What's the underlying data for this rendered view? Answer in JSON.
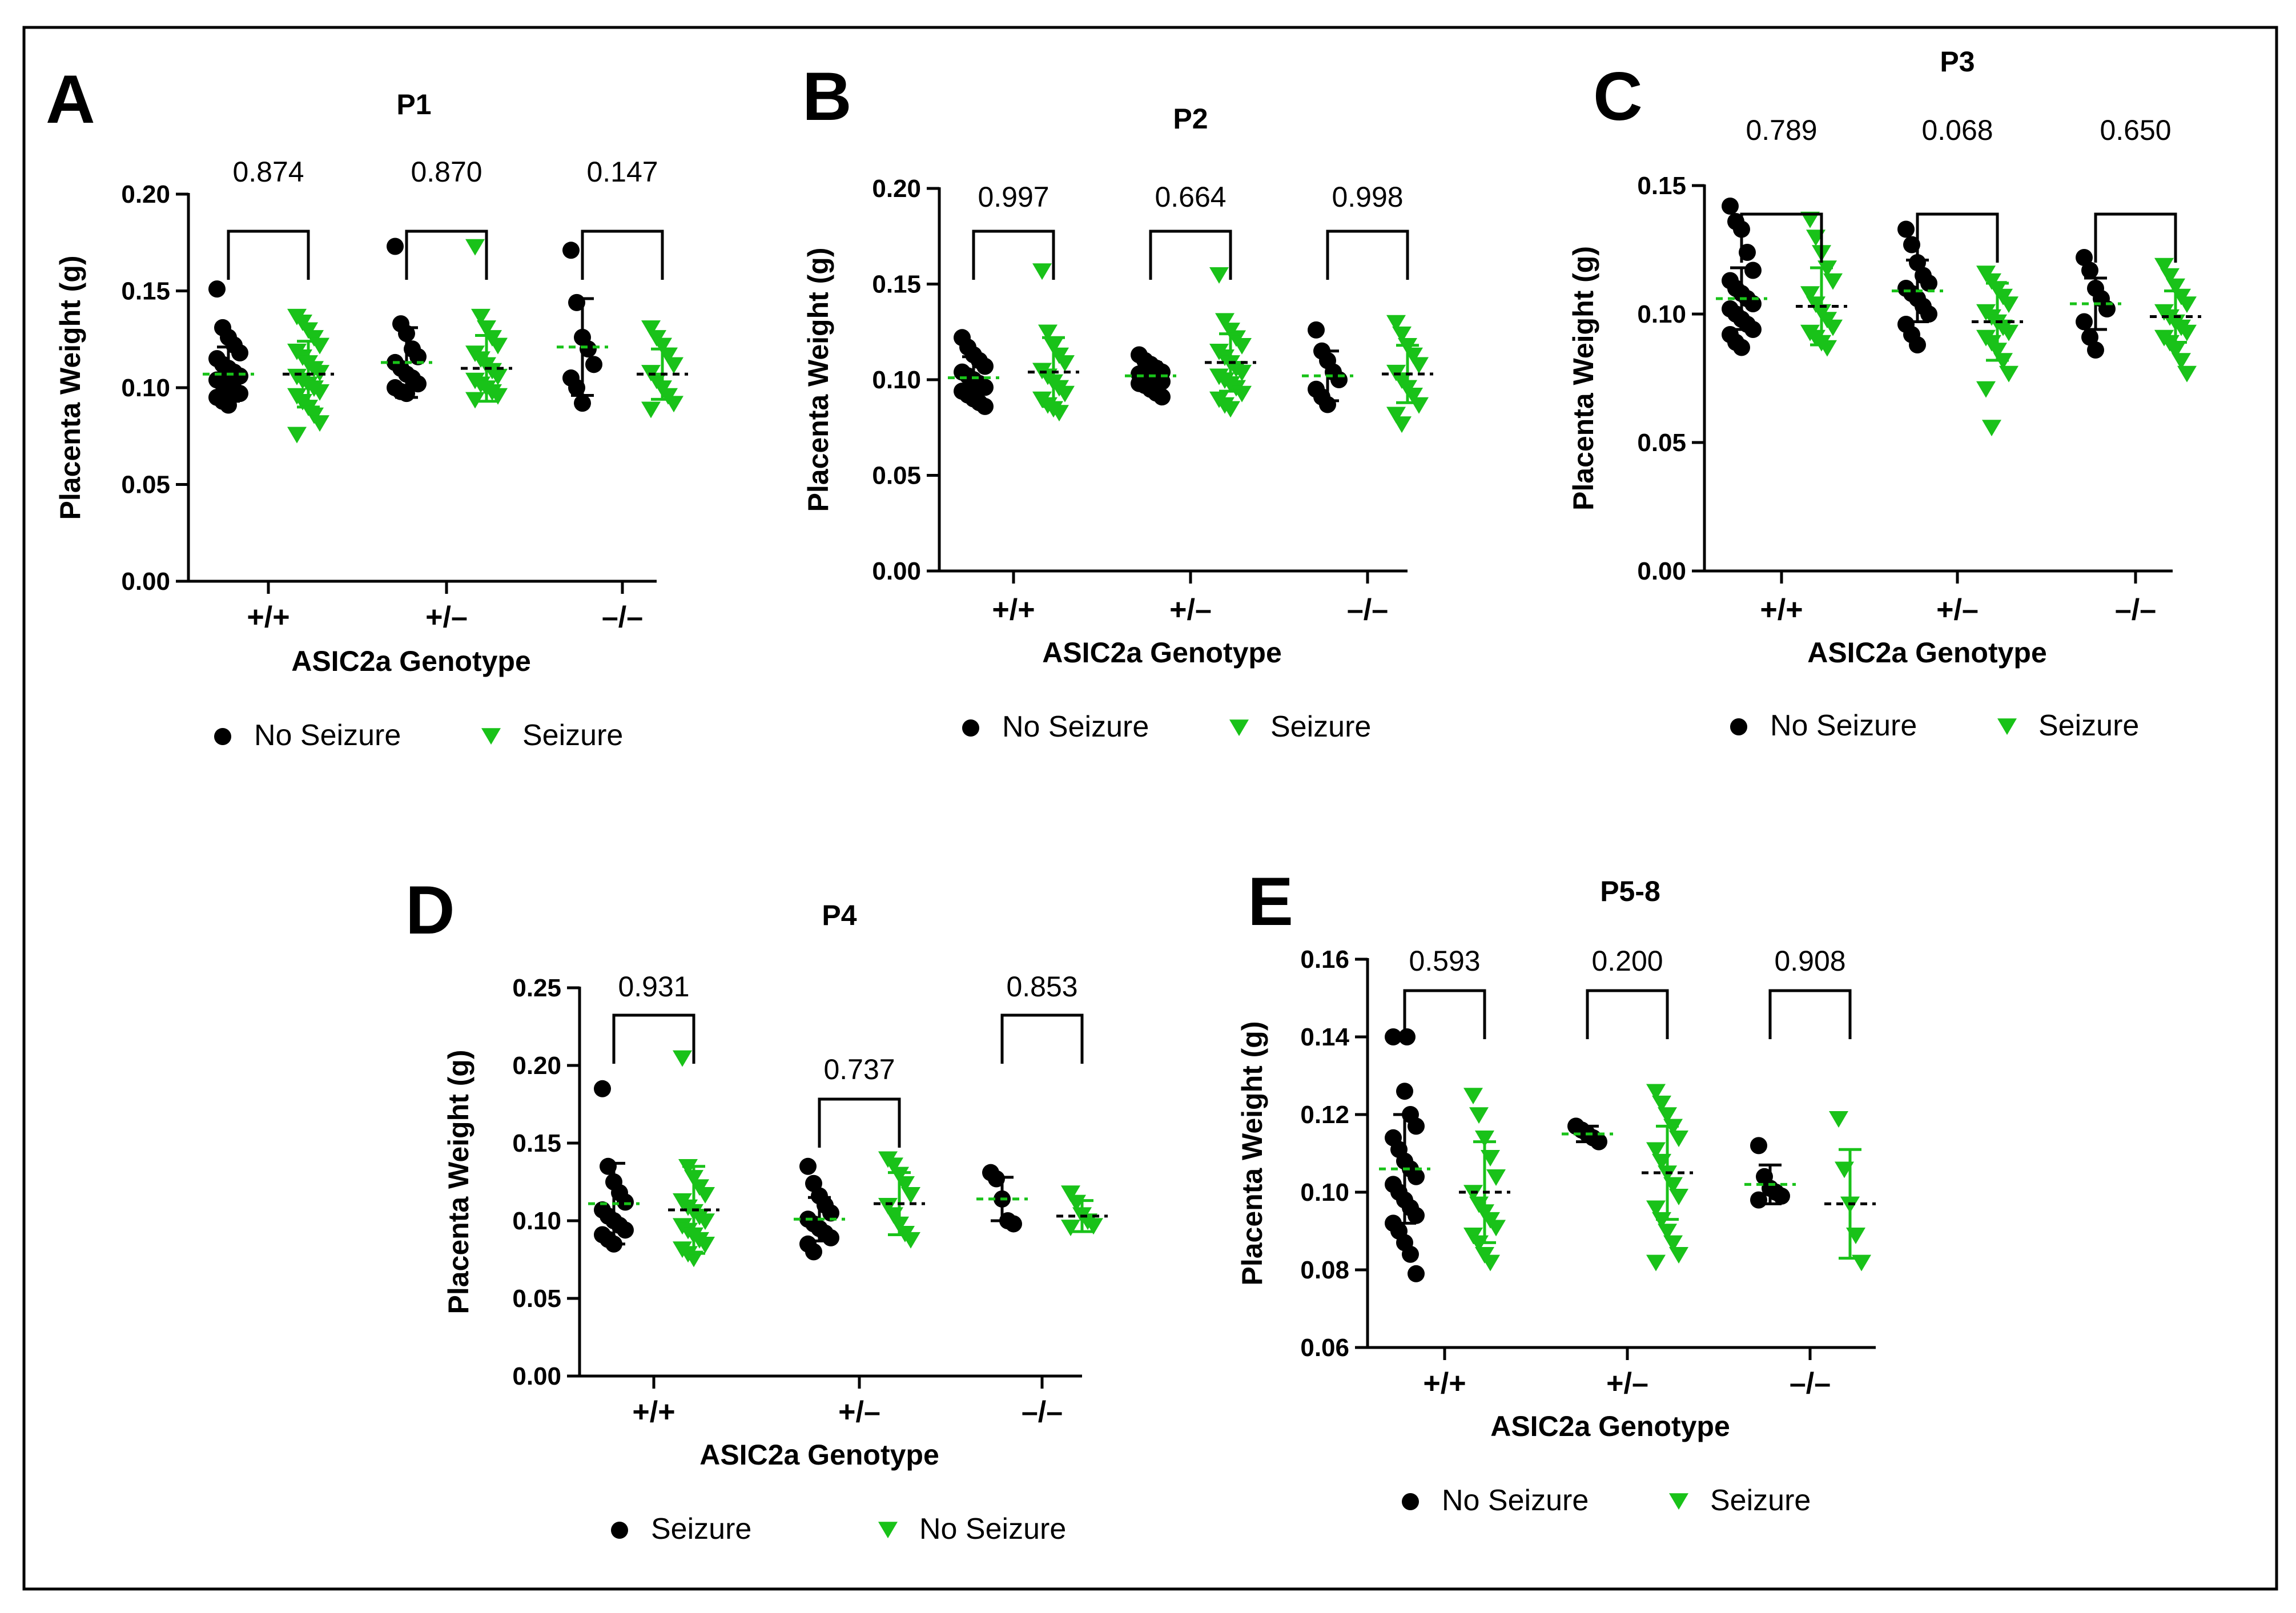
{
  "colors": {
    "black_series": "#000000",
    "green_series": "#19c219",
    "frame": "#000000"
  },
  "chart_data": [
    {
      "panel": "A",
      "type": "scatter",
      "title": "P1",
      "xlabel": "ASIC2a Genotype",
      "ylabel": "Placenta Weight (g)",
      "categories": [
        "+/+",
        "+/–",
        "–/–"
      ],
      "ylim": [
        0,
        0.2
      ],
      "yticks": [
        "0.00",
        "0.05",
        "0.10",
        "0.15",
        "0.20"
      ],
      "p_values": [
        "0.874",
        "0.870",
        "0.147"
      ],
      "legend": [
        "No Seizure",
        "Seizure"
      ],
      "series": [
        {
          "name": "No Seizure",
          "marker": "circle",
          "color": "#000000",
          "groups": [
            {
              "mean": 0.107,
              "sd": 0.014,
              "points": [
                0.151,
                0.131,
                0.126,
                0.122,
                0.118,
                0.115,
                0.112,
                0.11,
                0.108,
                0.106,
                0.104,
                0.102,
                0.1,
                0.099,
                0.097,
                0.095,
                0.093,
                0.091
              ]
            },
            {
              "mean": 0.113,
              "sd": 0.018,
              "points": [
                0.173,
                0.133,
                0.128,
                0.12,
                0.116,
                0.113,
                0.11,
                0.107,
                0.105,
                0.102,
                0.1,
                0.098,
                0.097
              ]
            },
            {
              "mean": 0.121,
              "sd": 0.025,
              "points": [
                0.171,
                0.144,
                0.126,
                0.12,
                0.112,
                0.105,
                0.1,
                0.092
              ]
            }
          ]
        },
        {
          "name": "Seizure",
          "marker": "triangle",
          "color": "#19c219",
          "groups": [
            {
              "mean": 0.107,
              "sd": 0.017,
              "points": [
                0.137,
                0.134,
                0.13,
                0.126,
                0.122,
                0.119,
                0.116,
                0.113,
                0.11,
                0.108,
                0.106,
                0.104,
                0.102,
                0.1,
                0.098,
                0.096,
                0.093,
                0.09,
                0.086,
                0.082,
                0.076
              ]
            },
            {
              "mean": 0.11,
              "sd": 0.017,
              "points": [
                0.173,
                0.137,
                0.131,
                0.126,
                0.122,
                0.118,
                0.115,
                0.112,
                0.109,
                0.106,
                0.104,
                0.102,
                0.1,
                0.098,
                0.096,
                0.094
              ]
            },
            {
              "mean": 0.107,
              "sd": 0.013,
              "points": [
                0.131,
                0.126,
                0.122,
                0.117,
                0.112,
                0.108,
                0.104,
                0.1,
                0.096,
                0.092,
                0.089
              ]
            }
          ]
        }
      ]
    },
    {
      "panel": "B",
      "type": "scatter",
      "title": "P2",
      "xlabel": "ASIC2a Genotype",
      "ylabel": "Placenta Weight (g)",
      "categories": [
        "+/+",
        "+/–",
        "–/–"
      ],
      "ylim": [
        0,
        0.2
      ],
      "yticks": [
        "0.00",
        "0.05",
        "0.10",
        "0.15",
        "0.20"
      ],
      "p_values": [
        "0.997",
        "0.664",
        "0.998"
      ],
      "legend": [
        "No Seizure",
        "Seizure"
      ],
      "series": [
        {
          "name": "No Seizure",
          "marker": "circle",
          "color": "#000000",
          "groups": [
            {
              "mean": 0.101,
              "sd": 0.011,
              "points": [
                0.122,
                0.117,
                0.113,
                0.11,
                0.107,
                0.104,
                0.102,
                0.1,
                0.098,
                0.096,
                0.094,
                0.092,
                0.09,
                0.088,
                0.086
              ]
            },
            {
              "mean": 0.102,
              "sd": 0.007,
              "points": [
                0.113,
                0.11,
                0.108,
                0.106,
                0.104,
                0.103,
                0.102,
                0.101,
                0.1,
                0.099,
                0.098,
                0.097,
                0.095,
                0.093,
                0.091
              ]
            },
            {
              "mean": 0.102,
              "sd": 0.013,
              "points": [
                0.126,
                0.115,
                0.11,
                0.104,
                0.1,
                0.095,
                0.091,
                0.087
              ]
            }
          ]
        },
        {
          "name": "Seizure",
          "marker": "triangle",
          "color": "#19c219",
          "groups": [
            {
              "mean": 0.104,
              "sd": 0.018,
              "points": [
                0.157,
                0.125,
                0.118,
                0.113,
                0.109,
                0.105,
                0.102,
                0.099,
                0.096,
                0.093,
                0.09,
                0.087,
                0.085,
                0.083
              ]
            },
            {
              "mean": 0.109,
              "sd": 0.015,
              "points": [
                0.155,
                0.131,
                0.126,
                0.122,
                0.118,
                0.115,
                0.112,
                0.109,
                0.106,
                0.104,
                0.102,
                0.1,
                0.098,
                0.096,
                0.093,
                0.09,
                0.087,
                0.085
              ]
            },
            {
              "mean": 0.103,
              "sd": 0.015,
              "points": [
                0.13,
                0.124,
                0.118,
                0.113,
                0.108,
                0.104,
                0.1,
                0.096,
                0.092,
                0.087,
                0.082,
                0.077
              ]
            }
          ]
        }
      ]
    },
    {
      "panel": "C",
      "type": "scatter",
      "title": "P3",
      "xlabel": "ASIC2a Genotype",
      "ylabel": "Placenta Weight (g)",
      "categories": [
        "+/+",
        "+/–",
        "–/–"
      ],
      "ylim": [
        0,
        0.15
      ],
      "yticks": [
        "0.00",
        "0.05",
        "0.10",
        "0.15"
      ],
      "p_values": [
        "0.789",
        "0.068",
        "0.650"
      ],
      "legend": [
        "No Seizure",
        "Seizure"
      ],
      "series": [
        {
          "name": "No Seizure",
          "marker": "circle",
          "color": "#000000",
          "groups": [
            {
              "mean": 0.106,
              "sd": 0.012,
              "points": [
                0.142,
                0.136,
                0.133,
                0.124,
                0.117,
                0.113,
                0.11,
                0.108,
                0.106,
                0.104,
                0.102,
                0.1,
                0.098,
                0.096,
                0.094,
                0.092,
                0.089,
                0.087
              ]
            },
            {
              "mean": 0.109,
              "sd": 0.012,
              "points": [
                0.133,
                0.127,
                0.12,
                0.115,
                0.112,
                0.11,
                0.108,
                0.106,
                0.103,
                0.1,
                0.096,
                0.092,
                0.088
              ]
            },
            {
              "mean": 0.104,
              "sd": 0.01,
              "points": [
                0.122,
                0.117,
                0.11,
                0.106,
                0.102,
                0.097,
                0.091,
                0.086
              ]
            }
          ]
        },
        {
          "name": "Seizure",
          "marker": "triangle",
          "color": "#19c219",
          "groups": [
            {
              "mean": 0.103,
              "sd": 0.015,
              "points": [
                0.137,
                0.13,
                0.124,
                0.118,
                0.113,
                0.108,
                0.104,
                0.101,
                0.098,
                0.095,
                0.093,
                0.091,
                0.089,
                0.087
              ]
            },
            {
              "mean": 0.097,
              "sd": 0.015,
              "points": [
                0.116,
                0.113,
                0.11,
                0.107,
                0.104,
                0.101,
                0.099,
                0.097,
                0.095,
                0.093,
                0.091,
                0.089,
                0.086,
                0.082,
                0.077,
                0.071,
                0.056
              ]
            },
            {
              "mean": 0.099,
              "sd": 0.01,
              "points": [
                0.119,
                0.115,
                0.111,
                0.107,
                0.104,
                0.101,
                0.099,
                0.097,
                0.095,
                0.093,
                0.091,
                0.089,
                0.086,
                0.082,
                0.077
              ]
            }
          ]
        }
      ]
    },
    {
      "panel": "D",
      "type": "scatter",
      "title": "P4",
      "xlabel": "ASIC2a Genotype",
      "ylabel": "Placenta Weight (g)",
      "categories": [
        "+/+",
        "+/–",
        "–/–"
      ],
      "ylim": [
        0,
        0.25
      ],
      "yticks": [
        "0.00",
        "0.05",
        "0.10",
        "0.15",
        "0.20",
        "0.25"
      ],
      "p_values": [
        "0.931",
        "0.737",
        "0.853"
      ],
      "legend": [
        "Seizure",
        "No Seizure"
      ],
      "series": [
        {
          "name": "Seizure",
          "marker": "circle",
          "color": "#000000",
          "groups": [
            {
              "mean": 0.111,
              "sd": 0.026,
              "points": [
                0.185,
                0.135,
                0.125,
                0.118,
                0.112,
                0.107,
                0.103,
                0.1,
                0.097,
                0.094,
                0.091,
                0.088,
                0.085
              ]
            },
            {
              "mean": 0.101,
              "sd": 0.014,
              "points": [
                0.135,
                0.124,
                0.116,
                0.11,
                0.105,
                0.101,
                0.098,
                0.095,
                0.092,
                0.089,
                0.085,
                0.08
              ]
            },
            {
              "mean": 0.114,
              "sd": 0.014,
              "points": [
                0.131,
                0.127,
                0.114,
                0.1,
                0.098
              ]
            }
          ]
        },
        {
          "name": "No Seizure",
          "marker": "triangle",
          "color": "#19c219",
          "groups": [
            {
              "mean": 0.107,
              "sd": 0.028,
              "points": [
                0.205,
                0.135,
                0.128,
                0.122,
                0.117,
                0.113,
                0.109,
                0.106,
                0.103,
                0.1,
                0.097,
                0.094,
                0.091,
                0.088,
                0.085,
                0.082,
                0.079,
                0.076
              ]
            },
            {
              "mean": 0.111,
              "sd": 0.02,
              "points": [
                0.14,
                0.136,
                0.13,
                0.124,
                0.117,
                0.11,
                0.104,
                0.098,
                0.092,
                0.088
              ]
            },
            {
              "mean": 0.103,
              "sd": 0.01,
              "points": [
                0.118,
                0.112,
                0.104,
                0.1,
                0.097,
                0.096
              ]
            }
          ]
        }
      ]
    },
    {
      "panel": "E",
      "type": "scatter",
      "title": "P5-8",
      "xlabel": "ASIC2a Genotype",
      "ylabel": "Placenta Weight (g)",
      "categories": [
        "+/+",
        "+/–",
        "–/–"
      ],
      "ylim": [
        0.06,
        0.16
      ],
      "yticks": [
        "0.06",
        "0.08",
        "0.10",
        "0.12",
        "0.14",
        "0.16"
      ],
      "p_values": [
        "0.593",
        "0.200",
        "0.908"
      ],
      "legend": [
        "No Seizure",
        "Seizure"
      ],
      "series": [
        {
          "name": "No Seizure",
          "marker": "circle",
          "color": "#000000",
          "groups": [
            {
              "mean": 0.106,
              "sd": 0.014,
              "points": [
                0.14,
                0.14,
                0.126,
                0.12,
                0.117,
                0.114,
                0.111,
                0.108,
                0.106,
                0.104,
                0.102,
                0.1,
                0.098,
                0.096,
                0.094,
                0.092,
                0.09,
                0.087,
                0.084,
                0.079
              ]
            },
            {
              "mean": 0.115,
              "sd": 0.002,
              "points": [
                0.117,
                0.116,
                0.115,
                0.114,
                0.113
              ]
            },
            {
              "mean": 0.102,
              "sd": 0.005,
              "points": [
                0.112,
                0.104,
                0.101,
                0.1,
                0.099,
                0.098
              ]
            }
          ]
        },
        {
          "name": "Seizure",
          "marker": "triangle",
          "color": "#19c219",
          "groups": [
            {
              "mean": 0.1,
              "sd": 0.013,
              "points": [
                0.125,
                0.12,
                0.114,
                0.109,
                0.104,
                0.1,
                0.097,
                0.095,
                0.093,
                0.091,
                0.089,
                0.087,
                0.084,
                0.082
              ]
            },
            {
              "mean": 0.105,
              "sd": 0.012,
              "points": [
                0.126,
                0.123,
                0.12,
                0.117,
                0.114,
                0.111,
                0.108,
                0.105,
                0.102,
                0.099,
                0.096,
                0.093,
                0.09,
                0.087,
                0.084,
                0.082
              ]
            },
            {
              "mean": 0.097,
              "sd": 0.014,
              "points": [
                0.119,
                0.106,
                0.097,
                0.089,
                0.082
              ]
            }
          ]
        }
      ]
    }
  ]
}
